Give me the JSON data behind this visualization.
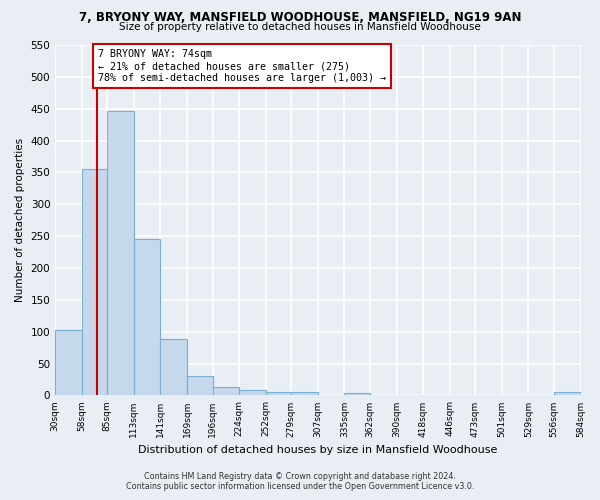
{
  "title": "7, BRYONY WAY, MANSFIELD WOODHOUSE, MANSFIELD, NG19 9AN",
  "subtitle": "Size of property relative to detached houses in Mansfield Woodhouse",
  "xlabel": "Distribution of detached houses by size in Mansfield Woodhouse",
  "ylabel": "Number of detached properties",
  "bin_labels": [
    "30sqm",
    "58sqm",
    "85sqm",
    "113sqm",
    "141sqm",
    "169sqm",
    "196sqm",
    "224sqm",
    "252sqm",
    "279sqm",
    "307sqm",
    "335sqm",
    "362sqm",
    "390sqm",
    "418sqm",
    "446sqm",
    "473sqm",
    "501sqm",
    "529sqm",
    "556sqm",
    "584sqm"
  ],
  "bar_values": [
    103,
    355,
    447,
    246,
    89,
    31,
    13,
    9,
    5,
    5,
    0,
    4,
    0,
    0,
    0,
    0,
    0,
    0,
    0,
    5
  ],
  "bar_color": "#c5d8ec",
  "bar_edge_color": "#7aafd4",
  "property_size": 74,
  "property_label": "7 BRYONY WAY: 74sqm",
  "annotation_line1": "← 21% of detached houses are smaller (275)",
  "annotation_line2": "78% of semi-detached houses are larger (1,003) →",
  "red_line_color": "#cc0000",
  "annotation_box_color": "#ffffff",
  "annotation_box_edge_color": "#cc0000",
  "ylim": [
    0,
    550
  ],
  "yticks": [
    0,
    50,
    100,
    150,
    200,
    250,
    300,
    350,
    400,
    450,
    500,
    550
  ],
  "footer_line1": "Contains HM Land Registry data © Crown copyright and database right 2024.",
  "footer_line2": "Contains public sector information licensed under the Open Government Licence v3.0.",
  "background_color": "#e8eef4",
  "plot_background_color": "#e8eef4",
  "grid_color": "#ffffff",
  "bin_edges": [
    30,
    58,
    85,
    113,
    141,
    169,
    196,
    224,
    252,
    279,
    307,
    335,
    362,
    390,
    418,
    446,
    473,
    501,
    529,
    556,
    584
  ]
}
